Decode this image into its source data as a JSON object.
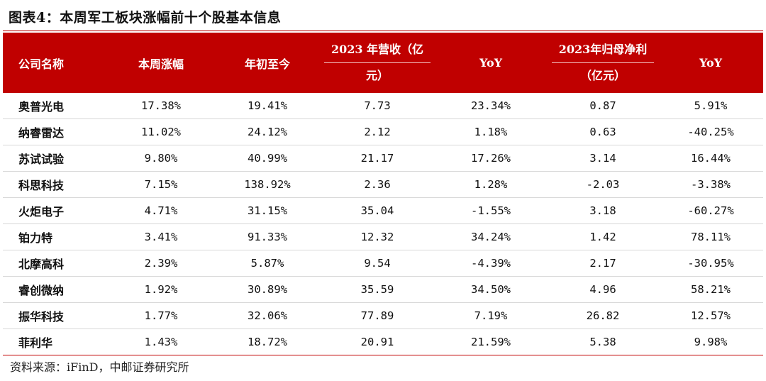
{
  "title": "图表4：本周军工板块涨幅前十个股基本信息",
  "columns": {
    "name": "公司名称",
    "weekly": "本周涨幅",
    "ytd": "年初至今",
    "rev_line1": "2023 年营收（亿",
    "rev_line2": "元）",
    "yoy1": "YoY",
    "np_line1": "2023年归母净利",
    "np_line2": "（亿元）",
    "yoy2": "YoY"
  },
  "rows": [
    {
      "name": "奥普光电",
      "weekly": "17.38%",
      "ytd": "19.41%",
      "revenue": "7.73",
      "rev_yoy": "23.34%",
      "net_profit": "0.87",
      "np_yoy": "5.91%"
    },
    {
      "name": "纳睿雷达",
      "weekly": "11.02%",
      "ytd": "24.12%",
      "revenue": "2.12",
      "rev_yoy": "1.18%",
      "net_profit": "0.63",
      "np_yoy": "-40.25%"
    },
    {
      "name": "苏试试验",
      "weekly": "9.80%",
      "ytd": "40.99%",
      "revenue": "21.17",
      "rev_yoy": "17.26%",
      "net_profit": "3.14",
      "np_yoy": "16.44%"
    },
    {
      "name": "科思科技",
      "weekly": "7.15%",
      "ytd": "138.92%",
      "revenue": "2.36",
      "rev_yoy": "1.28%",
      "net_profit": "-2.03",
      "np_yoy": "-3.38%"
    },
    {
      "name": "火炬电子",
      "weekly": "4.71%",
      "ytd": "31.15%",
      "revenue": "35.04",
      "rev_yoy": "-1.55%",
      "net_profit": "3.18",
      "np_yoy": "-60.27%"
    },
    {
      "name": "铂力特",
      "weekly": "3.41%",
      "ytd": "91.33%",
      "revenue": "12.32",
      "rev_yoy": "34.24%",
      "net_profit": "1.42",
      "np_yoy": "78.11%"
    },
    {
      "name": "北摩高科",
      "weekly": "2.39%",
      "ytd": "5.87%",
      "revenue": "9.54",
      "rev_yoy": "-4.39%",
      "net_profit": "2.17",
      "np_yoy": "-30.95%"
    },
    {
      "name": "睿创微纳",
      "weekly": "1.92%",
      "ytd": "30.89%",
      "revenue": "35.59",
      "rev_yoy": "34.50%",
      "net_profit": "4.96",
      "np_yoy": "58.21%"
    },
    {
      "name": "振华科技",
      "weekly": "1.77%",
      "ytd": "32.06%",
      "revenue": "77.89",
      "rev_yoy": "7.19%",
      "net_profit": "26.82",
      "np_yoy": "12.57%"
    },
    {
      "name": "菲利华",
      "weekly": "1.43%",
      "ytd": "18.72%",
      "revenue": "20.91",
      "rev_yoy": "21.59%",
      "net_profit": "5.38",
      "np_yoy": "9.98%"
    }
  ],
  "source": "资料来源：iFinD，中邮证券研究所",
  "colors": {
    "header_bg": "#c00000",
    "header_text": "#ffffff",
    "rule": "#c00000"
  }
}
